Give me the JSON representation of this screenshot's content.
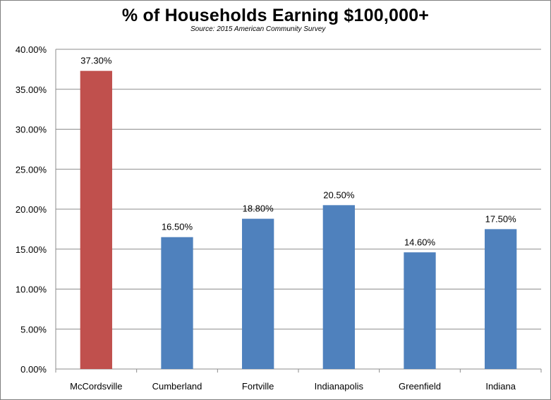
{
  "chart_data": {
    "type": "bar",
    "title": "% of Households Earning $100,000+",
    "subtitle": "Source: 2015 American Community Survey",
    "categories": [
      "McCordsville",
      "Cumberland",
      "Fortville",
      "Indianapolis",
      "Greenfield",
      "Indiana"
    ],
    "values": [
      37.3,
      16.5,
      18.8,
      20.5,
      14.6,
      17.5
    ],
    "data_labels": [
      "37.30%",
      "16.50%",
      "18.80%",
      "20.50%",
      "14.60%",
      "17.50%"
    ],
    "bar_colors": [
      "#c0504d",
      "#4f81bd",
      "#4f81bd",
      "#4f81bd",
      "#4f81bd",
      "#4f81bd"
    ],
    "ylim": [
      0,
      40
    ],
    "yticks": [
      0,
      5,
      10,
      15,
      20,
      25,
      30,
      35,
      40
    ],
    "ytick_labels": [
      "0.00%",
      "5.00%",
      "10.00%",
      "15.00%",
      "20.00%",
      "25.00%",
      "30.00%",
      "35.00%",
      "40.00%"
    ],
    "grid": true,
    "legend": "none",
    "gridline_color": "#8c8c8c"
  }
}
